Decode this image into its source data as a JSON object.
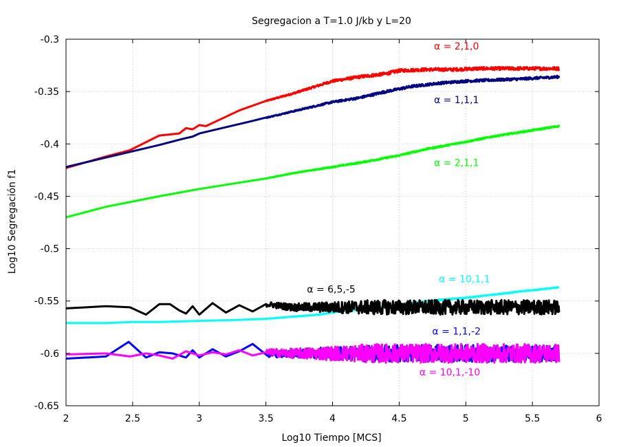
{
  "chart_data": {
    "type": "line",
    "title": "Segregacion a T=1.0 J/kb y L=20",
    "xlabel": "Log10 Tiempo [MCS]",
    "ylabel": "Log10 Segregación f1",
    "xlim": [
      2,
      6
    ],
    "ylim": [
      -0.65,
      -0.3
    ],
    "xticks": [
      "2",
      "2.5",
      "3",
      "3.5",
      "4",
      "4.5",
      "5",
      "5.5",
      "6"
    ],
    "yticks": [
      "-0.3",
      "-0.35",
      "-0.4",
      "-0.45",
      "-0.5",
      "-0.55",
      "-0.6",
      "-0.65"
    ],
    "grid": true,
    "series": [
      {
        "name": "α = 2,1,0",
        "color": "#ff0000",
        "label_at": [
          4.93,
          -0.31
        ],
        "x": [
          2.0,
          2.3,
          2.48,
          2.7,
          2.85,
          2.9,
          2.95,
          3.0,
          3.05,
          3.15,
          3.3,
          3.5,
          3.7,
          3.9,
          4.0,
          4.2,
          4.4,
          4.5,
          4.7,
          4.9,
          5.1,
          5.3,
          5.5,
          5.7
        ],
        "y": [
          -0.423,
          -0.412,
          -0.406,
          -0.392,
          -0.39,
          -0.385,
          -0.386,
          -0.382,
          -0.383,
          -0.377,
          -0.368,
          -0.359,
          -0.352,
          -0.344,
          -0.34,
          -0.336,
          -0.333,
          -0.33,
          -0.329,
          -0.329,
          -0.328,
          -0.328,
          -0.328,
          -0.328
        ],
        "noise": 0.0015
      },
      {
        "name": "α = 1,1,1",
        "color": "#000080",
        "label_at": [
          4.93,
          -0.361
        ],
        "x": [
          2.0,
          2.3,
          2.5,
          2.7,
          2.88,
          2.95,
          3.0,
          3.2,
          3.4,
          3.6,
          3.8,
          4.0,
          4.2,
          4.4,
          4.6,
          4.8,
          5.0,
          5.2,
          5.4,
          5.7
        ],
        "y": [
          -0.422,
          -0.413,
          -0.407,
          -0.401,
          -0.395,
          -0.393,
          -0.39,
          -0.384,
          -0.378,
          -0.372,
          -0.366,
          -0.36,
          -0.356,
          -0.35,
          -0.345,
          -0.342,
          -0.34,
          -0.339,
          -0.338,
          -0.336
        ],
        "noise": 0.0012
      },
      {
        "name": "α = 2,1,1",
        "color": "#00ff00",
        "label_at": [
          4.93,
          -0.421
        ],
        "x": [
          2.0,
          2.3,
          2.5,
          2.7,
          3.0,
          3.2,
          3.5,
          3.7,
          4.0,
          4.2,
          4.5,
          4.7,
          5.0,
          5.2,
          5.5,
          5.7
        ],
        "y": [
          -0.47,
          -0.46,
          -0.455,
          -0.45,
          -0.443,
          -0.439,
          -0.433,
          -0.428,
          -0.422,
          -0.418,
          -0.411,
          -0.405,
          -0.398,
          -0.393,
          -0.387,
          -0.383
        ],
        "noise": 0.0007
      },
      {
        "name": "α = 10,1,1",
        "color": "#00ffff",
        "label_at": [
          4.99,
          -0.532
        ],
        "x": [
          2.0,
          2.3,
          2.5,
          2.7,
          3.0,
          3.3,
          3.5,
          3.7,
          3.9,
          4.0,
          4.2,
          4.4,
          4.6,
          4.8,
          5.0,
          5.2,
          5.4,
          5.7
        ],
        "y": [
          -0.571,
          -0.571,
          -0.57,
          -0.57,
          -0.569,
          -0.568,
          -0.567,
          -0.565,
          -0.563,
          -0.561,
          -0.558,
          -0.555,
          -0.552,
          -0.549,
          -0.547,
          -0.544,
          -0.541,
          -0.537
        ],
        "noise": 0.0004
      },
      {
        "name": "α = 6,5,-5",
        "color": "#000000",
        "label_at": [
          3.99,
          -0.542
        ],
        "x": [
          2.0,
          2.3,
          2.48,
          2.6,
          2.7,
          2.78,
          2.85,
          2.9,
          2.95,
          3.0,
          3.1,
          3.2,
          3.3,
          3.4,
          3.5,
          3.7,
          4.0,
          4.5,
          5.0,
          5.5,
          5.7
        ],
        "y": [
          -0.557,
          -0.555,
          -0.556,
          -0.563,
          -0.553,
          -0.553,
          -0.559,
          -0.562,
          -0.555,
          -0.563,
          -0.552,
          -0.561,
          -0.554,
          -0.56,
          -0.553,
          -0.556,
          -0.556,
          -0.556,
          -0.556,
          -0.556,
          -0.556
        ],
        "noise": 0.007
      },
      {
        "name": "α = 1,1,-2",
        "color": "#0000ff",
        "label_at": [
          4.93,
          -0.582
        ],
        "x": [
          2.0,
          2.3,
          2.47,
          2.6,
          2.7,
          2.8,
          2.9,
          2.95,
          3.0,
          3.1,
          3.2,
          3.3,
          3.4,
          3.5,
          3.7,
          4.0,
          4.5,
          5.0,
          5.5,
          5.7
        ],
        "y": [
          -0.605,
          -0.603,
          -0.589,
          -0.604,
          -0.599,
          -0.6,
          -0.604,
          -0.597,
          -0.604,
          -0.596,
          -0.603,
          -0.598,
          -0.591,
          -0.601,
          -0.6,
          -0.6,
          -0.6,
          -0.6,
          -0.6,
          -0.6
        ],
        "noise": 0.008
      },
      {
        "name": "α = 10,1,-10",
        "color": "#ff00ff",
        "label_at": [
          4.88,
          -0.621
        ],
        "x": [
          2.0,
          2.3,
          2.48,
          2.6,
          2.7,
          2.8,
          2.9,
          3.0,
          3.1,
          3.2,
          3.3,
          3.4,
          3.5,
          3.7,
          4.0,
          4.5,
          5.0,
          5.5,
          5.7
        ],
        "y": [
          -0.601,
          -0.6,
          -0.603,
          -0.6,
          -0.602,
          -0.605,
          -0.598,
          -0.602,
          -0.599,
          -0.601,
          -0.597,
          -0.602,
          -0.599,
          -0.6,
          -0.6,
          -0.6,
          -0.6,
          -0.6,
          -0.6
        ],
        "noise": 0.009
      }
    ]
  }
}
